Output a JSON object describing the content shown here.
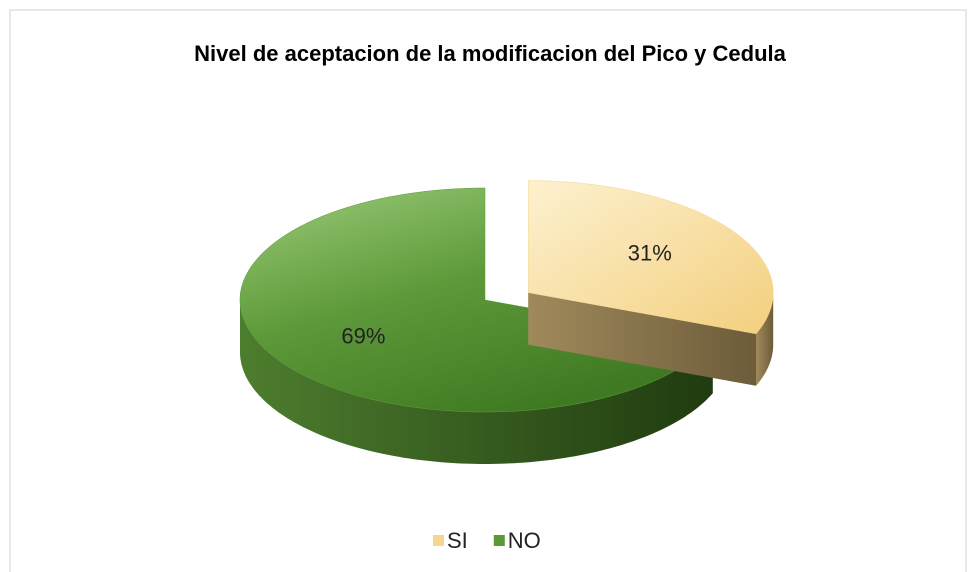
{
  "chart_data": {
    "type": "pie",
    "title": "Nivel de aceptacion de la modificacion del Pico y Cedula",
    "categories": [
      "SI",
      "NO"
    ],
    "values": [
      31,
      69
    ],
    "value_labels": [
      "31%",
      "69%"
    ],
    "colors": [
      "#f6d68f",
      "#5a9a36"
    ],
    "legend": "bottom"
  }
}
